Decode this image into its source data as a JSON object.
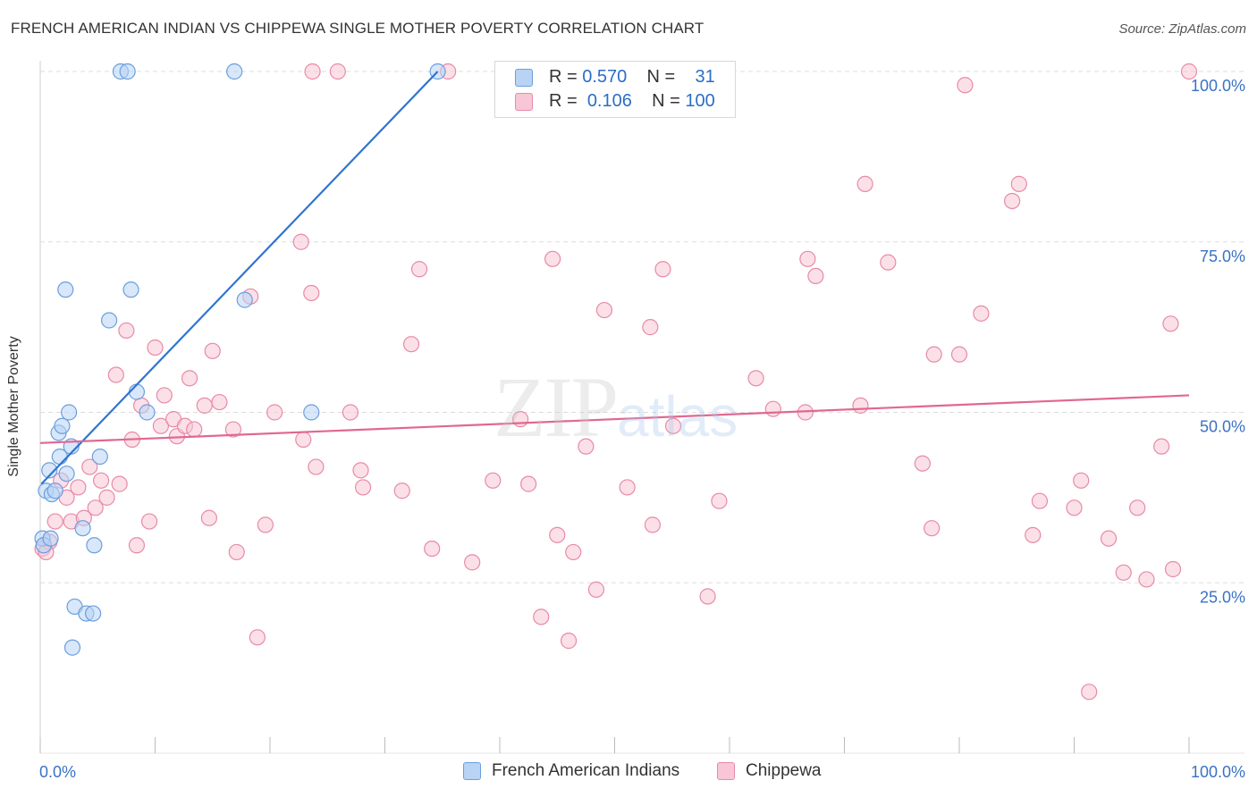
{
  "title": "FRENCH AMERICAN INDIAN VS CHIPPEWA SINGLE MOTHER POVERTY CORRELATION CHART",
  "source": "Source: ZipAtlas.com",
  "watermark": {
    "zip": "ZIP",
    "atlas": "atlas"
  },
  "colors": {
    "blue_fill": "#b8d3f4",
    "blue_stroke": "#6a9fdd",
    "blue_line": "#2f74d0",
    "pink_fill": "#f8c6d6",
    "pink_stroke": "#e88aa8",
    "pink_line": "#e06890",
    "tick_text": "#3a72c4",
    "grid": "#dddddd"
  },
  "legend_top": [
    {
      "r_label": "R =",
      "r_value": "0.570",
      "n_label": "N =",
      "n_value": "31",
      "series": "blue"
    },
    {
      "r_label": "R =",
      "r_value": "0.106",
      "n_label": "N =",
      "n_value": "100",
      "series": "pink"
    }
  ],
  "legend_bottom": [
    {
      "label": "French American Indians",
      "series": "blue"
    },
    {
      "label": "Chippewa",
      "series": "pink"
    }
  ],
  "chart_data": {
    "type": "scatter",
    "title": "FRENCH AMERICAN INDIAN VS CHIPPEWA SINGLE MOTHER POVERTY CORRELATION CHART",
    "xlabel": "",
    "ylabel": "Single Mother Poverty",
    "xlim": [
      0,
      100
    ],
    "ylim": [
      0,
      100
    ],
    "x_tick_labels": [
      {
        "value": 0,
        "label": "0.0%"
      },
      {
        "value": 100,
        "label": "100.0%"
      }
    ],
    "y_tick_labels": [
      {
        "value": 25,
        "label": "25.0%"
      },
      {
        "value": 50,
        "label": "50.0%"
      },
      {
        "value": 75,
        "label": "75.0%"
      },
      {
        "value": 100,
        "label": "100.0%"
      }
    ],
    "grid": true,
    "series": [
      {
        "name": "French American Indians",
        "color": "blue",
        "trend": {
          "x0": 0.1,
          "y0": 39.5,
          "x1": 34.6,
          "y1": 100
        },
        "points": [
          [
            0.2,
            31.5
          ],
          [
            0.3,
            30.5
          ],
          [
            0.5,
            38.5
          ],
          [
            0.8,
            41.5
          ],
          [
            1.0,
            38
          ],
          [
            1.3,
            38.5
          ],
          [
            1.6,
            47
          ],
          [
            1.7,
            43.5
          ],
          [
            1.9,
            48
          ],
          [
            2.2,
            68
          ],
          [
            2.3,
            41
          ],
          [
            2.5,
            50
          ],
          [
            2.7,
            45
          ],
          [
            3.0,
            21.5
          ],
          [
            2.8,
            15.5
          ],
          [
            3.7,
            33
          ],
          [
            4.0,
            20.5
          ],
          [
            4.6,
            20.5
          ],
          [
            4.7,
            30.5
          ],
          [
            5.2,
            43.5
          ],
          [
            6.0,
            63.5
          ],
          [
            7.0,
            100
          ],
          [
            7.6,
            100
          ],
          [
            7.9,
            68
          ],
          [
            8.4,
            53
          ],
          [
            9.3,
            50
          ],
          [
            16.9,
            100
          ],
          [
            17.8,
            66.5
          ],
          [
            23.6,
            50
          ],
          [
            34.6,
            100
          ],
          [
            0.9,
            31.5
          ]
        ]
      },
      {
        "name": "Chippewa",
        "color": "pink",
        "trend": {
          "x0": 0,
          "y0": 45.5,
          "x1": 100,
          "y1": 52.5
        },
        "points": [
          [
            0.2,
            30
          ],
          [
            0.8,
            31
          ],
          [
            1.3,
            34
          ],
          [
            1.8,
            40
          ],
          [
            2.3,
            37.5
          ],
          [
            2.7,
            34
          ],
          [
            3.3,
            39
          ],
          [
            3.8,
            34.5
          ],
          [
            4.3,
            42
          ],
          [
            4.8,
            36
          ],
          [
            5.3,
            40
          ],
          [
            5.8,
            37.5
          ],
          [
            6.6,
            55.5
          ],
          [
            6.9,
            39.5
          ],
          [
            7.5,
            62
          ],
          [
            8.0,
            46
          ],
          [
            8.4,
            30.5
          ],
          [
            8.8,
            51
          ],
          [
            9.5,
            34
          ],
          [
            10.0,
            59.5
          ],
          [
            10.5,
            48
          ],
          [
            10.8,
            52.5
          ],
          [
            11.6,
            49
          ],
          [
            11.9,
            46.5
          ],
          [
            12.6,
            48
          ],
          [
            13.0,
            55
          ],
          [
            13.4,
            47.5
          ],
          [
            14.3,
            51
          ],
          [
            14.7,
            34.5
          ],
          [
            15.0,
            59
          ],
          [
            15.6,
            51.5
          ],
          [
            16.8,
            47.5
          ],
          [
            17.1,
            29.5
          ],
          [
            18.3,
            67
          ],
          [
            18.9,
            17
          ],
          [
            19.6,
            33.5
          ],
          [
            20.4,
            50
          ],
          [
            22.7,
            75
          ],
          [
            22.9,
            46
          ],
          [
            23.6,
            67.5
          ],
          [
            24.0,
            42
          ],
          [
            23.7,
            100
          ],
          [
            25.9,
            100
          ],
          [
            27.0,
            50
          ],
          [
            27.9,
            41.5
          ],
          [
            28.1,
            39
          ],
          [
            31.5,
            38.5
          ],
          [
            32.3,
            60
          ],
          [
            33.0,
            71
          ],
          [
            34.1,
            30
          ],
          [
            35.5,
            100
          ],
          [
            37.6,
            28
          ],
          [
            39.4,
            40
          ],
          [
            41.8,
            49
          ],
          [
            42.5,
            39.5
          ],
          [
            43.6,
            20
          ],
          [
            44.6,
            72.5
          ],
          [
            45.0,
            32
          ],
          [
            46.0,
            16.5
          ],
          [
            46.4,
            29.5
          ],
          [
            47.5,
            45
          ],
          [
            48.4,
            24
          ],
          [
            49.1,
            65
          ],
          [
            51.1,
            39
          ],
          [
            53.1,
            62.5
          ],
          [
            53.3,
            33.5
          ],
          [
            54.2,
            71
          ],
          [
            55.1,
            48
          ],
          [
            58.1,
            23
          ],
          [
            59.1,
            37
          ],
          [
            62.3,
            55
          ],
          [
            63.8,
            50.5
          ],
          [
            66.6,
            50
          ],
          [
            66.8,
            72.5
          ],
          [
            67.5,
            70
          ],
          [
            71.4,
            51
          ],
          [
            71.8,
            83.5
          ],
          [
            73.8,
            72
          ],
          [
            76.8,
            42.5
          ],
          [
            77.6,
            33
          ],
          [
            77.8,
            58.5
          ],
          [
            80.0,
            58.5
          ],
          [
            80.5,
            98
          ],
          [
            81.9,
            64.5
          ],
          [
            84.6,
            81
          ],
          [
            85.2,
            83.5
          ],
          [
            86.4,
            32
          ],
          [
            87.0,
            37
          ],
          [
            90.0,
            36
          ],
          [
            90.6,
            40
          ],
          [
            91.3,
            9
          ],
          [
            93.0,
            31.5
          ],
          [
            94.3,
            26.5
          ],
          [
            95.5,
            36
          ],
          [
            96.3,
            25.5
          ],
          [
            97.6,
            45
          ],
          [
            98.6,
            27
          ],
          [
            98.4,
            63
          ],
          [
            100.0,
            100
          ],
          [
            0.5,
            29.5
          ]
        ]
      }
    ]
  }
}
